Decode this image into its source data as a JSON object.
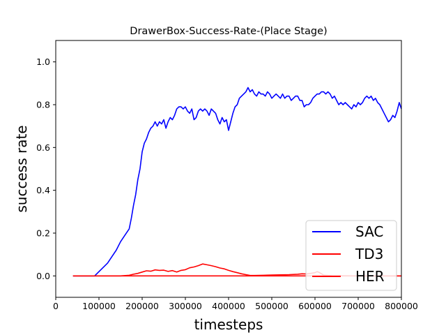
{
  "chart_data": {
    "type": "line",
    "title": "DrawerBox-Success-Rate-(Place Stage)",
    "xlabel": "timesteps",
    "ylabel": "success rate",
    "xlim": [
      0,
      800000
    ],
    "ylim": [
      -0.1,
      1.1
    ],
    "xticks": [
      0,
      100000,
      200000,
      300000,
      400000,
      500000,
      600000,
      700000,
      800000
    ],
    "xtick_labels": [
      "0",
      "100000",
      "200000",
      "300000",
      "400000",
      "500000",
      "600000",
      "700000",
      "800000"
    ],
    "yticks": [
      0.0,
      0.2,
      0.4,
      0.6,
      0.8,
      1.0
    ],
    "ytick_labels": [
      "0.0",
      "0.2",
      "0.4",
      "0.6",
      "0.8",
      "1.0"
    ],
    "grid": false,
    "legend": {
      "position": "lower-right",
      "entries": [
        "SAC",
        "TD3",
        "HER"
      ]
    },
    "series": [
      {
        "name": "SAC",
        "color": "#0000ff",
        "x": [
          40000,
          80000,
          90000,
          100000,
          110000,
          120000,
          130000,
          140000,
          150000,
          160000,
          170000,
          175000,
          180000,
          185000,
          190000,
          195000,
          200000,
          205000,
          210000,
          215000,
          220000,
          225000,
          230000,
          235000,
          240000,
          245000,
          250000,
          255000,
          260000,
          265000,
          270000,
          275000,
          280000,
          285000,
          290000,
          295000,
          300000,
          305000,
          310000,
          315000,
          320000,
          325000,
          330000,
          335000,
          340000,
          345000,
          350000,
          355000,
          360000,
          365000,
          370000,
          375000,
          380000,
          385000,
          390000,
          395000,
          400000,
          405000,
          410000,
          415000,
          420000,
          425000,
          430000,
          435000,
          440000,
          445000,
          450000,
          455000,
          460000,
          465000,
          470000,
          475000,
          480000,
          485000,
          490000,
          495000,
          500000,
          505000,
          510000,
          515000,
          520000,
          525000,
          530000,
          535000,
          540000,
          545000,
          550000,
          555000,
          560000,
          565000,
          570000,
          575000,
          580000,
          585000,
          590000,
          595000,
          600000,
          605000,
          610000,
          615000,
          620000,
          625000,
          630000,
          635000,
          640000,
          645000,
          650000,
          655000,
          660000,
          665000,
          670000,
          675000,
          680000,
          685000,
          690000,
          695000,
          700000,
          705000,
          710000,
          715000,
          720000,
          725000,
          730000,
          735000,
          740000,
          745000,
          750000,
          755000,
          760000,
          765000,
          770000,
          775000,
          780000,
          785000,
          790000,
          795000,
          800000
        ],
        "y": [
          0.0,
          0.0,
          0.0,
          0.02,
          0.04,
          0.06,
          0.09,
          0.12,
          0.16,
          0.19,
          0.22,
          0.27,
          0.33,
          0.38,
          0.45,
          0.5,
          0.58,
          0.62,
          0.64,
          0.67,
          0.69,
          0.7,
          0.72,
          0.7,
          0.72,
          0.71,
          0.73,
          0.69,
          0.72,
          0.74,
          0.73,
          0.75,
          0.78,
          0.79,
          0.79,
          0.78,
          0.79,
          0.77,
          0.76,
          0.78,
          0.73,
          0.74,
          0.77,
          0.78,
          0.77,
          0.78,
          0.77,
          0.75,
          0.78,
          0.77,
          0.76,
          0.73,
          0.71,
          0.74,
          0.72,
          0.73,
          0.68,
          0.72,
          0.76,
          0.79,
          0.8,
          0.83,
          0.84,
          0.85,
          0.86,
          0.88,
          0.86,
          0.87,
          0.85,
          0.84,
          0.86,
          0.85,
          0.85,
          0.84,
          0.86,
          0.85,
          0.83,
          0.84,
          0.85,
          0.84,
          0.83,
          0.85,
          0.83,
          0.84,
          0.84,
          0.82,
          0.83,
          0.84,
          0.84,
          0.82,
          0.82,
          0.79,
          0.8,
          0.8,
          0.81,
          0.83,
          0.84,
          0.85,
          0.85,
          0.86,
          0.86,
          0.85,
          0.86,
          0.85,
          0.83,
          0.84,
          0.82,
          0.8,
          0.81,
          0.8,
          0.81,
          0.8,
          0.79,
          0.78,
          0.8,
          0.79,
          0.81,
          0.8,
          0.81,
          0.83,
          0.84,
          0.83,
          0.84,
          0.82,
          0.83,
          0.81,
          0.8,
          0.78,
          0.76,
          0.74,
          0.72,
          0.73,
          0.75,
          0.74,
          0.77,
          0.81,
          0.78
        ]
      },
      {
        "name": "TD3",
        "color": "#ff0000",
        "x": [
          40000,
          100000,
          150000,
          170000,
          180000,
          190000,
          200000,
          210000,
          220000,
          230000,
          240000,
          250000,
          260000,
          270000,
          280000,
          290000,
          300000,
          310000,
          320000,
          330000,
          340000,
          350000,
          360000,
          370000,
          380000,
          390000,
          400000,
          410000,
          420000,
          430000,
          440000,
          450000,
          460000,
          480000,
          500000,
          520000,
          540000,
          560000,
          570000,
          580000,
          590000,
          600000,
          605000,
          610000,
          615000,
          620000,
          640000,
          700000,
          800000
        ],
        "y": [
          0.0,
          0.0,
          0.0,
          0.003,
          0.008,
          0.012,
          0.018,
          0.024,
          0.022,
          0.028,
          0.026,
          0.027,
          0.021,
          0.025,
          0.018,
          0.026,
          0.029,
          0.038,
          0.042,
          0.048,
          0.056,
          0.052,
          0.048,
          0.043,
          0.037,
          0.033,
          0.026,
          0.02,
          0.015,
          0.01,
          0.006,
          0.002,
          0.002,
          0.003,
          0.004,
          0.005,
          0.006,
          0.008,
          0.01,
          0.009,
          0.012,
          0.015,
          0.02,
          0.016,
          0.01,
          0.004,
          0.001,
          0.0,
          0.0
        ]
      },
      {
        "name": "HER",
        "color": "#ff0000",
        "x": [
          40000,
          800000
        ],
        "y": [
          0.0,
          0.0
        ]
      }
    ]
  }
}
